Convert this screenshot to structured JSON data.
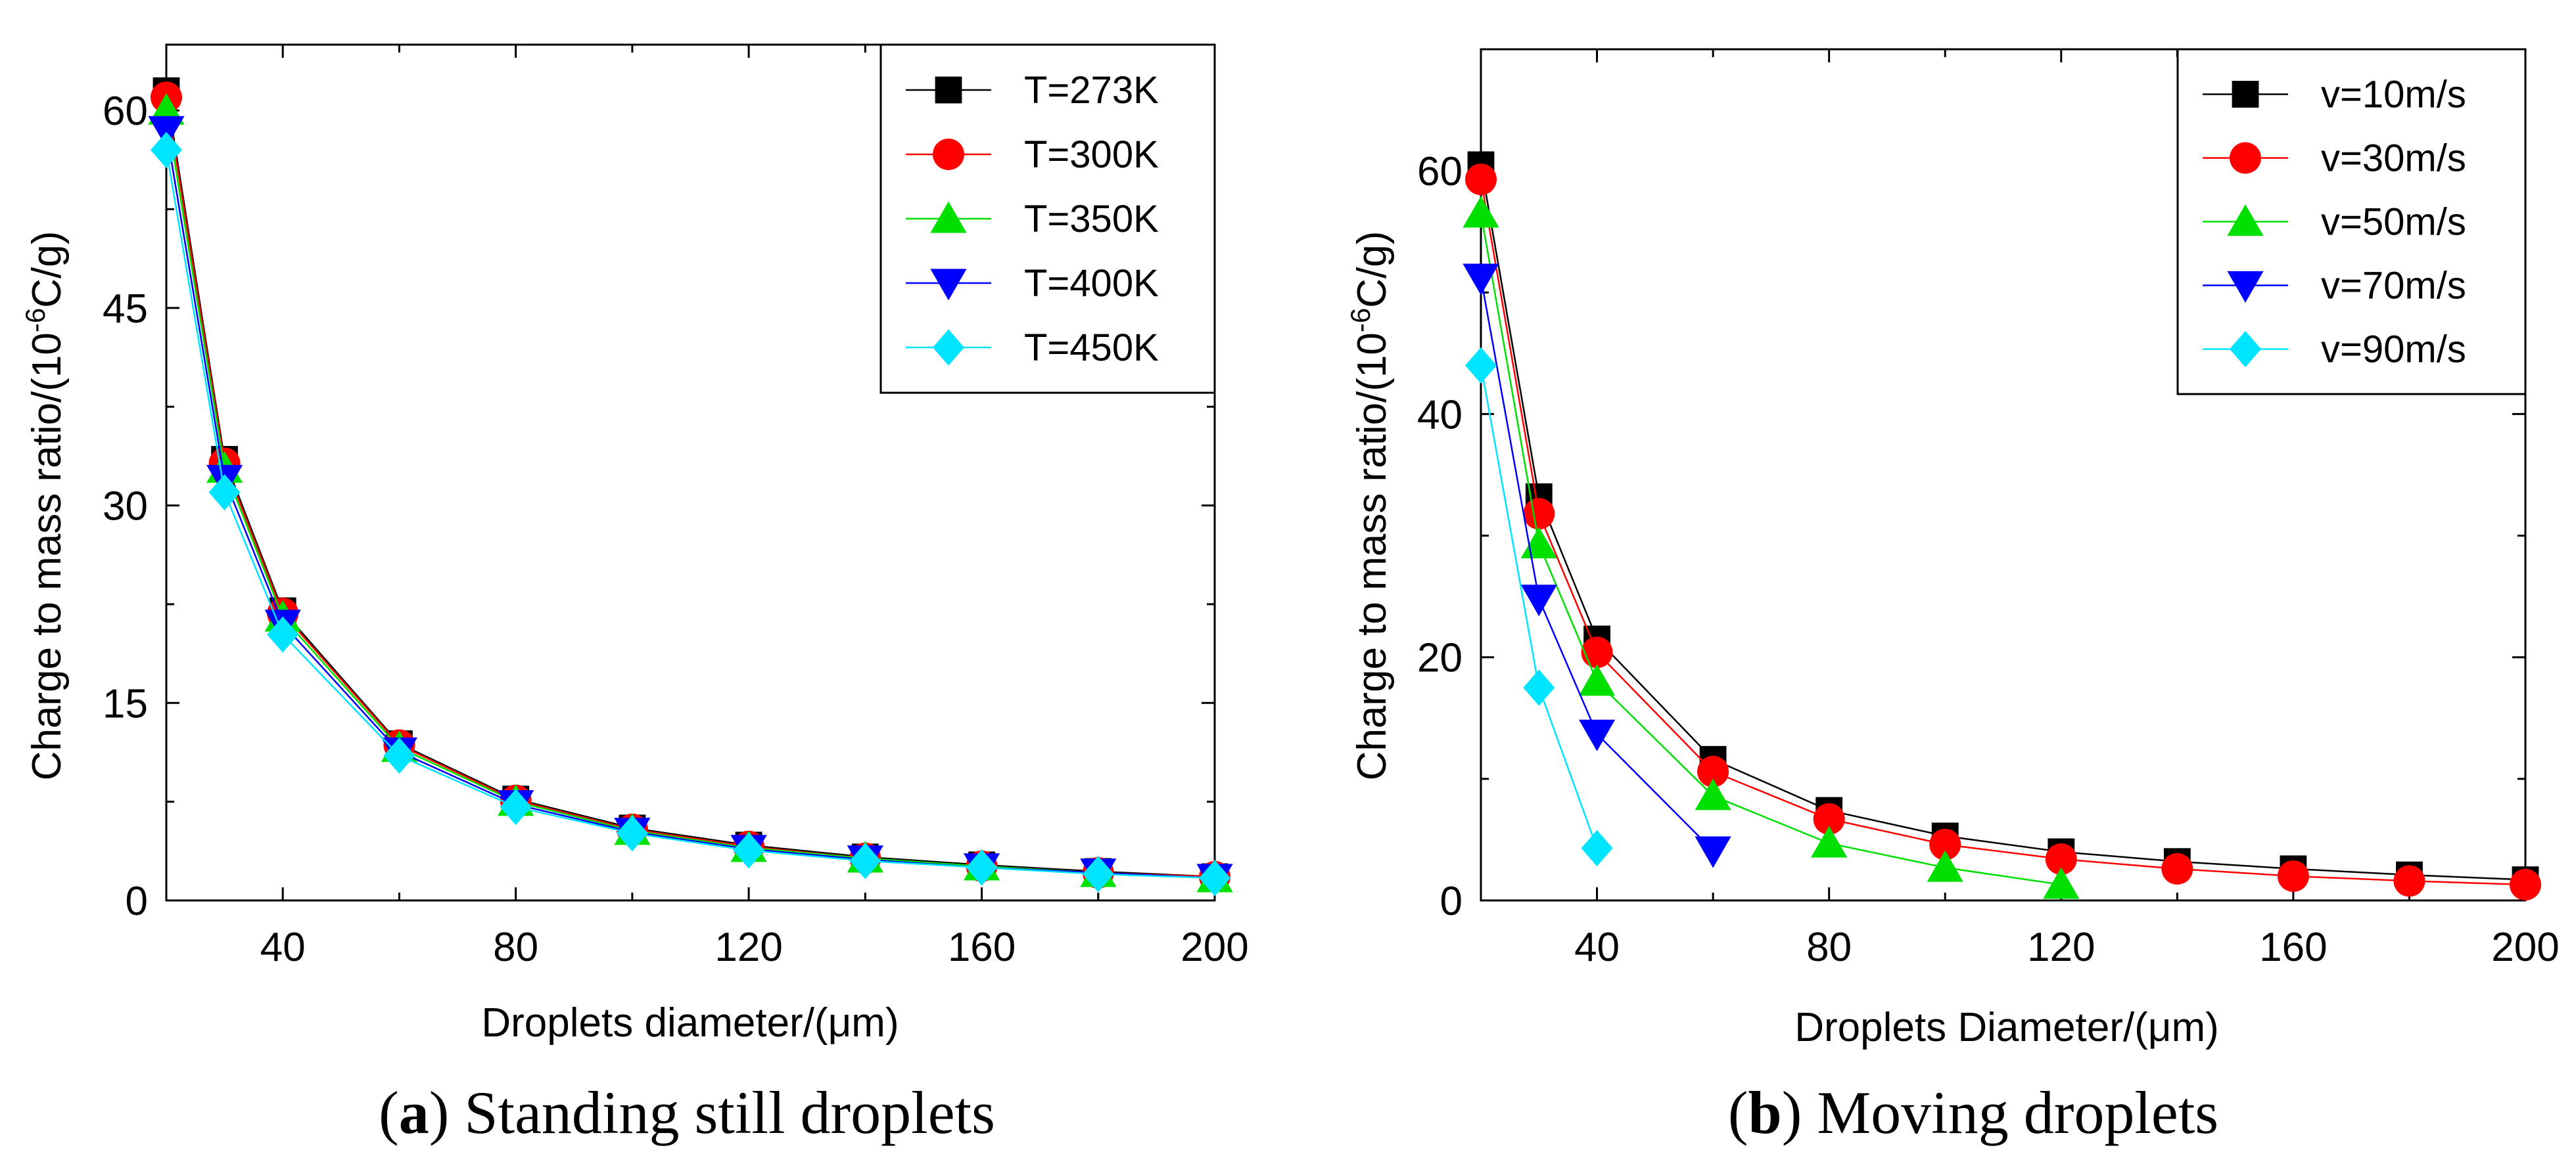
{
  "chart_data": [
    {
      "type": "line",
      "caption": {
        "open": "(",
        "letter": "a",
        "close": ")",
        "text": " Standing still droplets"
      },
      "xlabel": "Droplets diameter/(μm)",
      "ylabel": {
        "prefix": "Charge to mass ratio/(10",
        "sup": "-6",
        "suffix": "C/g)"
      },
      "xlim": [
        20,
        200
      ],
      "ylim": [
        0,
        65
      ],
      "xticks": [
        40,
        80,
        120,
        160,
        200
      ],
      "yticks": [
        0,
        15,
        30,
        45,
        60
      ],
      "x": [
        20,
        30,
        40,
        60,
        80,
        100,
        120,
        140,
        160,
        180,
        200
      ],
      "legend_position": "top-right",
      "series": [
        {
          "name": "T=273K",
          "color": "#000000",
          "marker": "square",
          "values": [
            61.5,
            33.5,
            22.0,
            11.9,
            7.7,
            5.5,
            4.2,
            3.3,
            2.7,
            2.2,
            1.8
          ]
        },
        {
          "name": "T=300K",
          "color": "#ff0000",
          "marker": "circle",
          "values": [
            61.0,
            33.2,
            21.8,
            11.8,
            7.6,
            5.4,
            4.1,
            3.2,
            2.6,
            2.1,
            1.8
          ]
        },
        {
          "name": "T=350K",
          "color": "#00e000",
          "marker": "triangle-up",
          "values": [
            60.0,
            32.8,
            21.5,
            11.6,
            7.5,
            5.3,
            4.0,
            3.2,
            2.6,
            2.1,
            1.7
          ]
        },
        {
          "name": "T=400K",
          "color": "#0000ff",
          "marker": "triangle-down",
          "values": [
            58.5,
            32.0,
            21.0,
            11.3,
            7.3,
            5.2,
            3.9,
            3.1,
            2.5,
            2.1,
            1.7
          ]
        },
        {
          "name": "T=450K",
          "color": "#00e5ff",
          "marker": "diamond",
          "values": [
            57.0,
            31.0,
            20.2,
            11.0,
            7.1,
            5.1,
            3.8,
            3.0,
            2.5,
            2.0,
            1.7
          ]
        }
      ]
    },
    {
      "type": "line",
      "caption": {
        "open": "(",
        "letter": "b",
        "close": ")",
        "text": " Moving droplets"
      },
      "xlabel": "Droplets Diameter/(μm)",
      "ylabel": {
        "prefix": "Charge to mass ratio/(10",
        "sup": "-6",
        "suffix": "C/g)"
      },
      "xlim": [
        20,
        200
      ],
      "ylim": [
        0,
        70
      ],
      "xticks": [
        40,
        80,
        120,
        160,
        200
      ],
      "yticks": [
        0,
        20,
        40,
        60
      ],
      "legend_position": "top-right",
      "series": [
        {
          "name": "v=10m/s",
          "color": "#000000",
          "marker": "square",
          "x": [
            20,
            30,
            40,
            60,
            80,
            100,
            120,
            140,
            160,
            180,
            200
          ],
          "values": [
            60.5,
            33.2,
            21.5,
            11.6,
            7.4,
            5.3,
            4.0,
            3.2,
            2.6,
            2.1,
            1.7
          ]
        },
        {
          "name": "v=30m/s",
          "color": "#ff0000",
          "marker": "circle",
          "x": [
            20,
            30,
            40,
            60,
            80,
            100,
            120,
            140,
            160,
            180,
            200
          ],
          "values": [
            59.3,
            31.8,
            20.4,
            10.6,
            6.7,
            4.6,
            3.4,
            2.6,
            2.0,
            1.6,
            1.3
          ]
        },
        {
          "name": "v=50m/s",
          "color": "#00e000",
          "marker": "triangle-up",
          "x": [
            20,
            30,
            40,
            60,
            80,
            100,
            120
          ],
          "values": [
            56.5,
            29.3,
            18.0,
            8.6,
            4.7,
            2.7,
            1.3
          ]
        },
        {
          "name": "v=70m/s",
          "color": "#0000ff",
          "marker": "triangle-down",
          "x": [
            20,
            30,
            40,
            60
          ],
          "values": [
            51.2,
            24.8,
            13.7,
            4.1
          ]
        },
        {
          "name": "v=90m/s",
          "color": "#00e5ff",
          "marker": "diamond",
          "x": [
            20,
            30,
            40
          ],
          "values": [
            44.0,
            17.5,
            4.3
          ]
        }
      ]
    }
  ]
}
